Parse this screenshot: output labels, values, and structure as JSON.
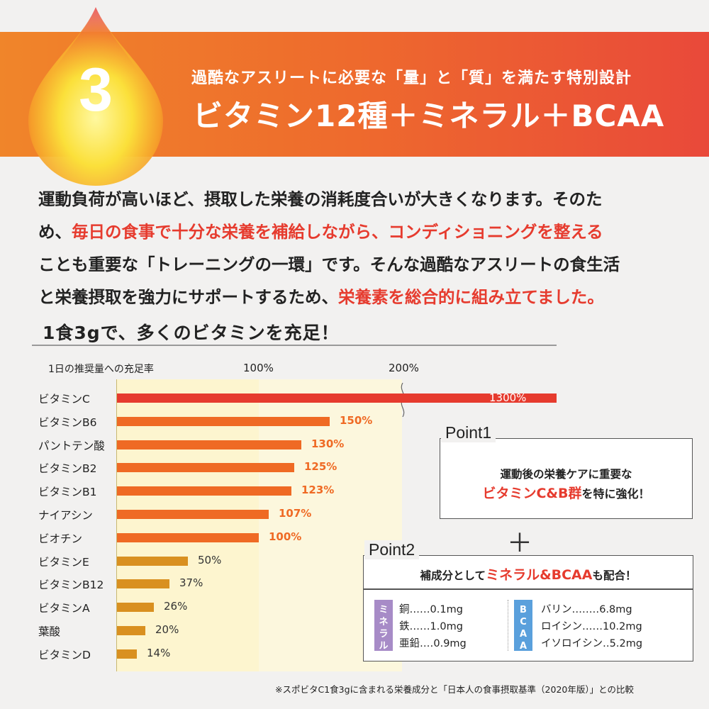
{
  "header": {
    "number": "3",
    "subtitle": "過酷なアスリートに必要な「量」と「質」を満たす特別設計",
    "title": "ビタミン12種＋ミネラル＋BCAA"
  },
  "intro": {
    "lines": [
      [
        {
          "t": "運動負荷が高いほど、摂取した栄養の消耗度合いが大きくなります。そのた",
          "hl": false
        }
      ],
      [
        {
          "t": "め、",
          "hl": false
        },
        {
          "t": "毎日の食事で十分な栄養を補給しながら、コンディショニングを整える",
          "hl": true
        }
      ],
      [
        {
          "t": "ことも重要な「トレーニングの一環」です。そんな過酷なアスリートの食生活",
          "hl": false
        }
      ],
      [
        {
          "t": "と栄養摂取を強力にサポートするため、",
          "hl": false
        },
        {
          "t": "栄養素を総合的に組み立てました。",
          "hl": true
        }
      ]
    ]
  },
  "section": {
    "heading": "1食3gで、多くのビタミンを充足！"
  },
  "chart_data": {
    "type": "bar",
    "orientation": "horizontal",
    "title": "1日の推奨量への充足率",
    "tick_labels": [
      "100%",
      "200%"
    ],
    "axis_break": true,
    "categories": [
      "ビタミンC",
      "ビタミンB6",
      "パントテン酸",
      "ビタミンB2",
      "ビタミンB1",
      "ナイアシン",
      "ビオチン",
      "ビタミンE",
      "ビタミンB12",
      "ビタミンA",
      "葉酸",
      "ビタミンD"
    ],
    "values": [
      1300,
      150,
      130,
      125,
      123,
      107,
      100,
      50,
      37,
      26,
      20,
      14
    ],
    "value_labels": [
      "1300%",
      "150%",
      "130%",
      "125%",
      "123%",
      "107%",
      "100%",
      "50%",
      "37%",
      "26%",
      "20%",
      "14%"
    ],
    "xlim": [
      0,
      300
    ],
    "colors": {
      "high": "#e63b2e",
      "mid": "#ef6a24",
      "low": "#d99020"
    }
  },
  "point1": {
    "tag": "Point1",
    "line1": "運動後の栄養ケアに重要な",
    "highlight": "ビタミンC&B群",
    "line2_suffix": "を特に強化！"
  },
  "plus": "＋",
  "point2": {
    "tag": "Point2",
    "headline_prefix": "補成分として",
    "highlight": "ミネラル&BCAA",
    "headline_suffix": "も配合！",
    "minerals_label": "ミネラル",
    "minerals": [
      "銅‥‥‥0.1mg",
      "鉄‥‥‥1.0mg",
      "亜鉛‥‥0.9mg"
    ],
    "bcaa_label": "BCAA",
    "bcaa": [
      "バリン‥‥‥‥6.8mg",
      "ロイシン‥‥‥10.2mg",
      "イソロイシン‥5.2mg"
    ]
  },
  "footnote": "※スポビタC1食3gに含まれる栄養成分と「日本人の食事摂取基準（2020年版）」との比較"
}
